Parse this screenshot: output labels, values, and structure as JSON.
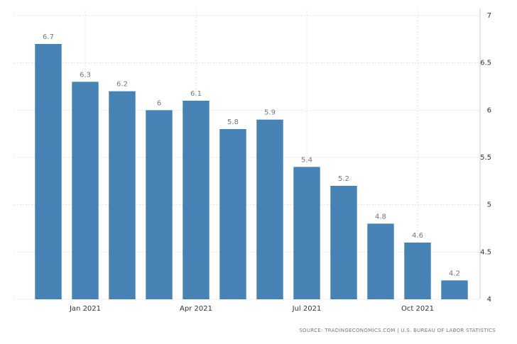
{
  "chart_data": {
    "type": "bar",
    "categories": [
      null,
      "Jan 2021",
      null,
      null,
      "Apr 2021",
      null,
      null,
      "Jul 2021",
      null,
      null,
      "Oct 2021",
      null
    ],
    "values": [
      6.7,
      6.3,
      6.2,
      6,
      6.1,
      5.8,
      5.9,
      5.4,
      5.2,
      4.8,
      4.6,
      4.2
    ],
    "color": "#4682b4",
    "ylim": [
      4,
      7
    ],
    "yticks": [
      4,
      4.5,
      5,
      5.5,
      6,
      6.5,
      7
    ],
    "grid": true,
    "source": "SOURCE: TRADINGECONOMICS.COM | U.S. BUREAU OF LABOR STATISTICS"
  }
}
